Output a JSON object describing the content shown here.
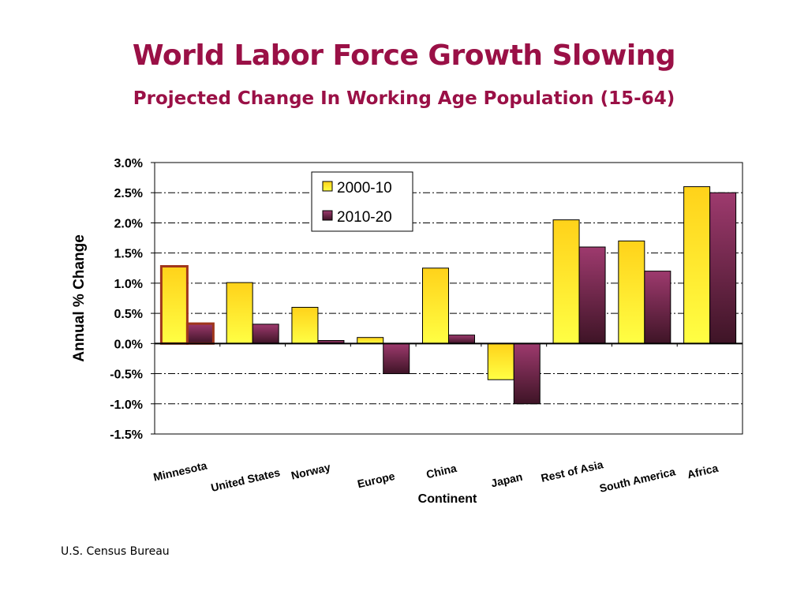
{
  "slide": {
    "title": "World Labor Force Growth Slowing",
    "subtitle": "Projected Change In Working Age Population (15-64)",
    "source": "U.S. Census Bureau"
  },
  "colors": {
    "title": "#9a1046",
    "series1_top": "#ffd21a",
    "series1_bottom": "#ffff44",
    "series2_top": "#9e3a6e",
    "series2_bottom": "#3e1426",
    "highlight_border": "#a0361c"
  },
  "chart_data": {
    "type": "bar",
    "xlabel": "Continent",
    "ylabel": "Annual % Change",
    "ylim": [
      -1.5,
      3.0
    ],
    "yticks": [
      3.0,
      2.5,
      2.0,
      1.5,
      1.0,
      0.5,
      0.0,
      -0.5,
      -1.0,
      -1.5
    ],
    "ytick_labels": [
      "3.0%",
      "2.5%",
      "2.0%",
      "1.5%",
      "1.0%",
      "0.5%",
      "0.0%",
      "-0.5%",
      "-1.0%",
      "-1.5%"
    ],
    "grid": true,
    "legend_position": "top-center",
    "highlighted_category": "Minnesota",
    "categories": [
      "Minnesota",
      "United States",
      "Norway",
      "Europe",
      "China",
      "Japan",
      "Rest of Asia",
      "South America",
      "Africa"
    ],
    "series": [
      {
        "name": "2000-10",
        "values": [
          1.28,
          1.01,
          0.6,
          0.1,
          1.25,
          -0.6,
          2.05,
          1.7,
          2.6
        ]
      },
      {
        "name": "2010-20",
        "values": [
          0.33,
          0.32,
          0.05,
          -0.5,
          0.14,
          -1.0,
          1.6,
          1.2,
          2.5
        ]
      }
    ]
  }
}
